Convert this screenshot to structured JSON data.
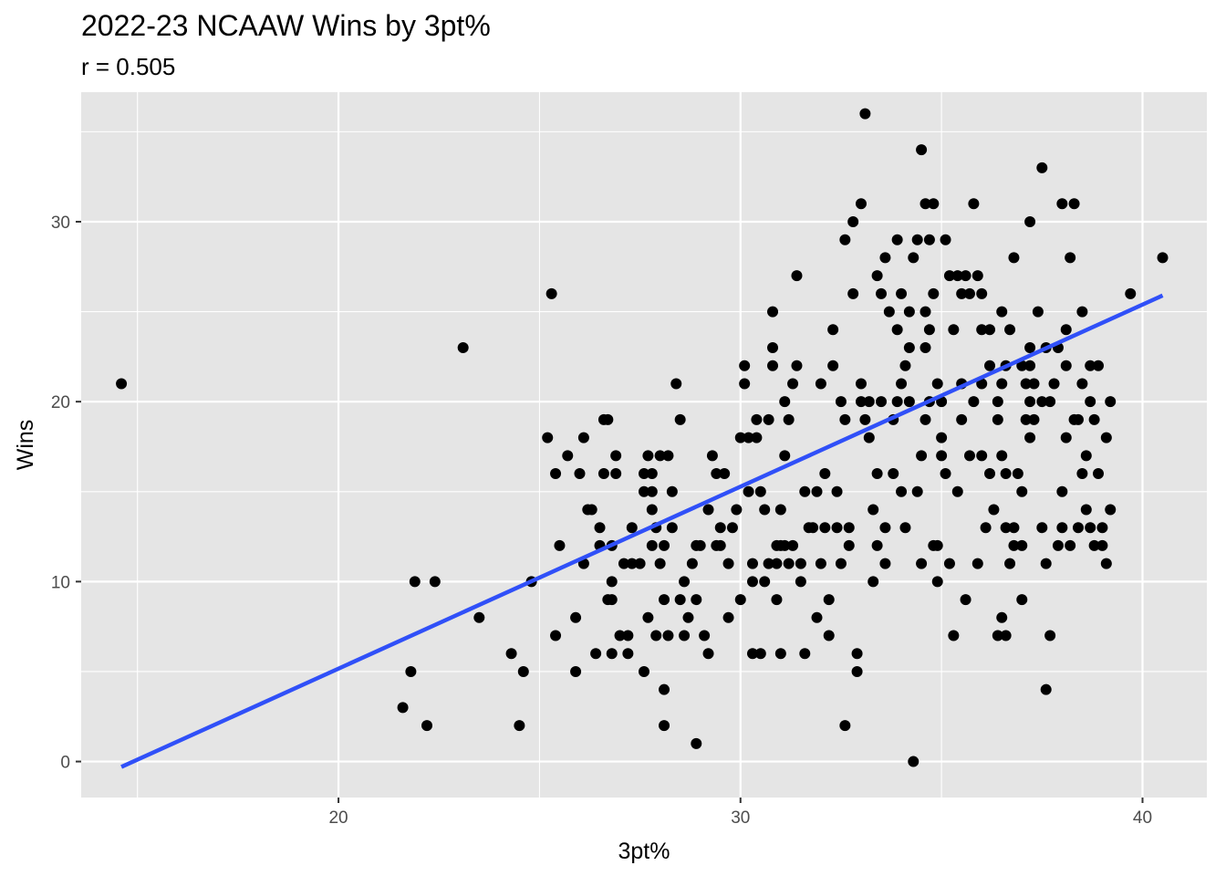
{
  "chart_data": {
    "type": "scatter",
    "title": "2022-23 NCAAW Wins by 3pt%",
    "subtitle": "r = 0.505",
    "xlabel": "3pt%",
    "ylabel": "Wins",
    "xlim": [
      13.6,
      41.6
    ],
    "ylim": [
      -2,
      37.2
    ],
    "x_ticks": [
      20,
      30,
      40
    ],
    "y_ticks": [
      0,
      10,
      20,
      30
    ],
    "grid": true,
    "colors": {
      "panel": "#e5e5e5",
      "grid": "#ffffff",
      "point": "#000000",
      "fit_line": "#3050f8"
    },
    "fit_line": {
      "x": [
        14.6,
        40.5
      ],
      "y": [
        -0.3,
        25.9
      ]
    },
    "points": [
      [
        14.6,
        21
      ],
      [
        21.6,
        3
      ],
      [
        21.8,
        5
      ],
      [
        21.9,
        10
      ],
      [
        22.2,
        2
      ],
      [
        22.4,
        10
      ],
      [
        23.1,
        23
      ],
      [
        23.5,
        8
      ],
      [
        24.3,
        6
      ],
      [
        24.6,
        5
      ],
      [
        24.5,
        2
      ],
      [
        24.8,
        10
      ],
      [
        25.2,
        18
      ],
      [
        25.3,
        26
      ],
      [
        25.4,
        16
      ],
      [
        25.4,
        7
      ],
      [
        25.5,
        12
      ],
      [
        25.7,
        17
      ],
      [
        25.9,
        5
      ],
      [
        25.9,
        8
      ],
      [
        26.0,
        16
      ],
      [
        26.1,
        11
      ],
      [
        26.2,
        14
      ],
      [
        26.3,
        14
      ],
      [
        26.1,
        18
      ],
      [
        26.4,
        6
      ],
      [
        26.5,
        12
      ],
      [
        26.5,
        13
      ],
      [
        26.6,
        16
      ],
      [
        26.6,
        19
      ],
      [
        26.7,
        19
      ],
      [
        26.7,
        9
      ],
      [
        26.8,
        10
      ],
      [
        26.8,
        9
      ],
      [
        26.8,
        6
      ],
      [
        26.8,
        12
      ],
      [
        26.9,
        16
      ],
      [
        26.9,
        17
      ],
      [
        27.0,
        7
      ],
      [
        27.1,
        11
      ],
      [
        27.2,
        7
      ],
      [
        27.2,
        6
      ],
      [
        27.3,
        11
      ],
      [
        27.3,
        13
      ],
      [
        27.5,
        11
      ],
      [
        27.6,
        5
      ],
      [
        27.6,
        15
      ],
      [
        27.6,
        16
      ],
      [
        27.7,
        17
      ],
      [
        27.7,
        8
      ],
      [
        27.8,
        12
      ],
      [
        27.8,
        14
      ],
      [
        27.8,
        15
      ],
      [
        27.8,
        16
      ],
      [
        27.9,
        7
      ],
      [
        27.9,
        13
      ],
      [
        28.0,
        17
      ],
      [
        28.0,
        11
      ],
      [
        28.1,
        2
      ],
      [
        28.1,
        4
      ],
      [
        28.1,
        9
      ],
      [
        28.1,
        12
      ],
      [
        28.2,
        7
      ],
      [
        28.2,
        17
      ],
      [
        28.3,
        15
      ],
      [
        28.3,
        13
      ],
      [
        28.4,
        21
      ],
      [
        28.5,
        19
      ],
      [
        28.5,
        9
      ],
      [
        28.6,
        10
      ],
      [
        28.6,
        7
      ],
      [
        28.7,
        8
      ],
      [
        28.8,
        11
      ],
      [
        28.9,
        12
      ],
      [
        28.9,
        1
      ],
      [
        28.9,
        9
      ],
      [
        29.0,
        12
      ],
      [
        29.1,
        7
      ],
      [
        29.2,
        6
      ],
      [
        29.2,
        14
      ],
      [
        29.3,
        17
      ],
      [
        29.4,
        16
      ],
      [
        29.4,
        12
      ],
      [
        29.5,
        12
      ],
      [
        29.5,
        13
      ],
      [
        29.6,
        16
      ],
      [
        29.7,
        8
      ],
      [
        29.7,
        11
      ],
      [
        29.8,
        13
      ],
      [
        29.9,
        14
      ],
      [
        30.0,
        9
      ],
      [
        30.0,
        18
      ],
      [
        30.1,
        21
      ],
      [
        30.1,
        22
      ],
      [
        30.2,
        15
      ],
      [
        30.2,
        18
      ],
      [
        30.3,
        6
      ],
      [
        30.3,
        10
      ],
      [
        30.3,
        11
      ],
      [
        30.4,
        18
      ],
      [
        30.4,
        19
      ],
      [
        30.5,
        15
      ],
      [
        30.5,
        6
      ],
      [
        30.6,
        10
      ],
      [
        30.6,
        14
      ],
      [
        30.7,
        11
      ],
      [
        30.7,
        19
      ],
      [
        30.8,
        22
      ],
      [
        30.8,
        23
      ],
      [
        30.8,
        25
      ],
      [
        30.9,
        9
      ],
      [
        30.9,
        11
      ],
      [
        30.9,
        12
      ],
      [
        31.0,
        12
      ],
      [
        31.0,
        14
      ],
      [
        31.0,
        6
      ],
      [
        31.1,
        20
      ],
      [
        31.1,
        17
      ],
      [
        31.1,
        12
      ],
      [
        31.2,
        11
      ],
      [
        31.2,
        19
      ],
      [
        31.3,
        12
      ],
      [
        31.3,
        21
      ],
      [
        31.4,
        22
      ],
      [
        31.4,
        27
      ],
      [
        31.5,
        10
      ],
      [
        31.5,
        11
      ],
      [
        31.6,
        15
      ],
      [
        31.6,
        6
      ],
      [
        31.7,
        13
      ],
      [
        31.8,
        13
      ],
      [
        31.9,
        8
      ],
      [
        31.9,
        15
      ],
      [
        32.0,
        11
      ],
      [
        32.0,
        21
      ],
      [
        32.1,
        16
      ],
      [
        32.1,
        13
      ],
      [
        32.2,
        7
      ],
      [
        32.2,
        9
      ],
      [
        32.3,
        24
      ],
      [
        32.3,
        22
      ],
      [
        32.4,
        13
      ],
      [
        32.4,
        15
      ],
      [
        32.5,
        11
      ],
      [
        32.5,
        20
      ],
      [
        32.6,
        19
      ],
      [
        32.6,
        2
      ],
      [
        32.7,
        12
      ],
      [
        32.7,
        13
      ],
      [
        32.8,
        26
      ],
      [
        32.9,
        6
      ],
      [
        32.9,
        5
      ],
      [
        33.0,
        20
      ],
      [
        33.0,
        21
      ],
      [
        33.1,
        19
      ],
      [
        33.1,
        36
      ],
      [
        33.2,
        18
      ],
      [
        33.2,
        20
      ],
      [
        33.3,
        14
      ],
      [
        33.3,
        10
      ],
      [
        33.4,
        16
      ],
      [
        33.4,
        12
      ],
      [
        33.5,
        26
      ],
      [
        33.5,
        20
      ],
      [
        33.6,
        13
      ],
      [
        33.6,
        11
      ],
      [
        33.7,
        25
      ],
      [
        33.8,
        19
      ],
      [
        33.8,
        16
      ],
      [
        33.9,
        20
      ],
      [
        33.9,
        24
      ],
      [
        34.0,
        21
      ],
      [
        34.0,
        15
      ],
      [
        34.1,
        13
      ],
      [
        34.1,
        22
      ],
      [
        34.2,
        25
      ],
      [
        34.2,
        20
      ],
      [
        34.3,
        0
      ],
      [
        34.3,
        28
      ],
      [
        34.4,
        15
      ],
      [
        34.5,
        11
      ],
      [
        34.5,
        17
      ],
      [
        34.6,
        19
      ],
      [
        34.6,
        25
      ],
      [
        34.7,
        20
      ],
      [
        34.7,
        24
      ],
      [
        34.8,
        12
      ],
      [
        34.9,
        10
      ],
      [
        34.9,
        12
      ],
      [
        35.0,
        18
      ],
      [
        35.0,
        20
      ],
      [
        35.1,
        16
      ],
      [
        35.2,
        11
      ],
      [
        35.3,
        7
      ],
      [
        35.4,
        15
      ],
      [
        35.5,
        19
      ],
      [
        35.5,
        21
      ],
      [
        35.6,
        9
      ],
      [
        35.7,
        17
      ],
      [
        35.8,
        20
      ],
      [
        35.9,
        11
      ],
      [
        36.0,
        21
      ],
      [
        36.0,
        17
      ],
      [
        36.1,
        13
      ],
      [
        36.2,
        16
      ],
      [
        36.3,
        14
      ],
      [
        36.4,
        19
      ],
      [
        36.5,
        17
      ],
      [
        36.5,
        21
      ],
      [
        36.6,
        13
      ],
      [
        36.6,
        22
      ],
      [
        36.7,
        11
      ],
      [
        36.8,
        13
      ],
      [
        36.9,
        16
      ],
      [
        37.0,
        9
      ],
      [
        37.0,
        15
      ],
      [
        37.1,
        21
      ],
      [
        37.2,
        22
      ],
      [
        37.2,
        30
      ],
      [
        37.2,
        18
      ],
      [
        37.3,
        19
      ],
      [
        37.4,
        25
      ],
      [
        37.5,
        20
      ],
      [
        37.5,
        13
      ],
      [
        37.6,
        4
      ],
      [
        37.6,
        23
      ],
      [
        37.7,
        20
      ],
      [
        37.7,
        7
      ],
      [
        37.8,
        21
      ],
      [
        37.9,
        23
      ],
      [
        37.9,
        12
      ],
      [
        38.0,
        13
      ],
      [
        38.0,
        15
      ],
      [
        38.1,
        22
      ],
      [
        38.1,
        18
      ],
      [
        38.2,
        28
      ],
      [
        38.3,
        31
      ],
      [
        38.3,
        19
      ],
      [
        38.4,
        19
      ],
      [
        38.4,
        13
      ],
      [
        38.5,
        21
      ],
      [
        38.5,
        16
      ],
      [
        38.6,
        17
      ],
      [
        38.6,
        14
      ],
      [
        38.7,
        22
      ],
      [
        38.7,
        13
      ],
      [
        38.8,
        19
      ],
      [
        38.8,
        12
      ],
      [
        38.9,
        22
      ],
      [
        38.9,
        16
      ],
      [
        39.0,
        13
      ],
      [
        39.0,
        12
      ],
      [
        39.1,
        18
      ],
      [
        39.1,
        11
      ],
      [
        39.2,
        20
      ],
      [
        39.2,
        14
      ],
      [
        32.6,
        29
      ],
      [
        32.8,
        30
      ],
      [
        33.0,
        31
      ],
      [
        33.4,
        27
      ],
      [
        33.6,
        28
      ],
      [
        33.9,
        29
      ],
      [
        34.0,
        26
      ],
      [
        34.2,
        23
      ],
      [
        34.6,
        23
      ],
      [
        34.8,
        31
      ],
      [
        35.1,
        29
      ],
      [
        35.3,
        24
      ],
      [
        35.5,
        26
      ],
      [
        35.7,
        26
      ],
      [
        35.9,
        27
      ],
      [
        36.0,
        24
      ],
      [
        36.2,
        24
      ],
      [
        36.4,
        7
      ],
      [
        36.6,
        7
      ],
      [
        36.8,
        12
      ],
      [
        37.0,
        12
      ],
      [
        37.1,
        19
      ],
      [
        37.2,
        23
      ],
      [
        37.3,
        21
      ],
      [
        34.4,
        29
      ],
      [
        34.5,
        34
      ],
      [
        34.6,
        31
      ],
      [
        34.7,
        29
      ],
      [
        34.8,
        26
      ],
      [
        34.9,
        21
      ],
      [
        35.0,
        17
      ],
      [
        35.2,
        27
      ],
      [
        35.4,
        27
      ],
      [
        35.6,
        27
      ],
      [
        35.8,
        31
      ],
      [
        36.0,
        26
      ],
      [
        36.2,
        22
      ],
      [
        36.4,
        20
      ],
      [
        36.5,
        8
      ],
      [
        36.5,
        25
      ],
      [
        36.6,
        16
      ],
      [
        36.7,
        24
      ],
      [
        36.8,
        28
      ],
      [
        37.0,
        22
      ],
      [
        37.2,
        20
      ],
      [
        37.5,
        33
      ],
      [
        37.6,
        11
      ],
      [
        38.0,
        31
      ],
      [
        38.1,
        24
      ],
      [
        38.2,
        12
      ],
      [
        38.5,
        25
      ],
      [
        38.7,
        20
      ],
      [
        39.7,
        26
      ],
      [
        40.5,
        28
      ]
    ]
  }
}
